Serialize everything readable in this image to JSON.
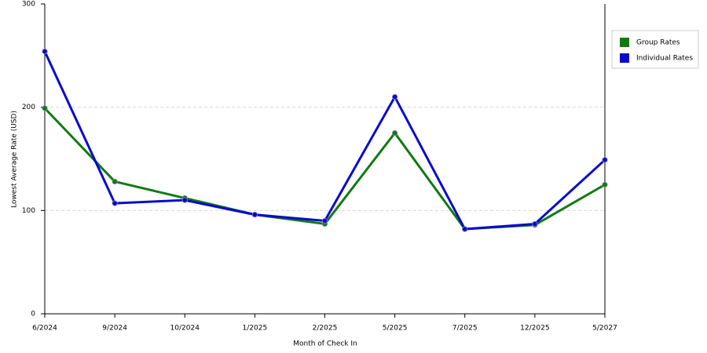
{
  "chart_data": {
    "type": "line",
    "x_label": "Month of Check In",
    "y_label": "Lowest Average Rate (USD)",
    "categories": [
      "6/2024",
      "9/2024",
      "10/2024",
      "1/2025",
      "2/2025",
      "5/2025",
      "7/2025",
      "12/2025",
      "5/2027"
    ],
    "series": [
      {
        "name": "Group Rates",
        "color": "#127a12",
        "values": [
          199,
          128,
          112,
          96,
          87,
          175,
          82,
          86,
          125
        ]
      },
      {
        "name": "Individual Rates",
        "color": "#0a0acc",
        "values": [
          254,
          107,
          110,
          96,
          90,
          210,
          82,
          87,
          149
        ]
      }
    ],
    "ylim": [
      0,
      300
    ],
    "yticks": [
      0,
      100,
      200,
      300
    ],
    "grid": true,
    "legend": "right"
  }
}
